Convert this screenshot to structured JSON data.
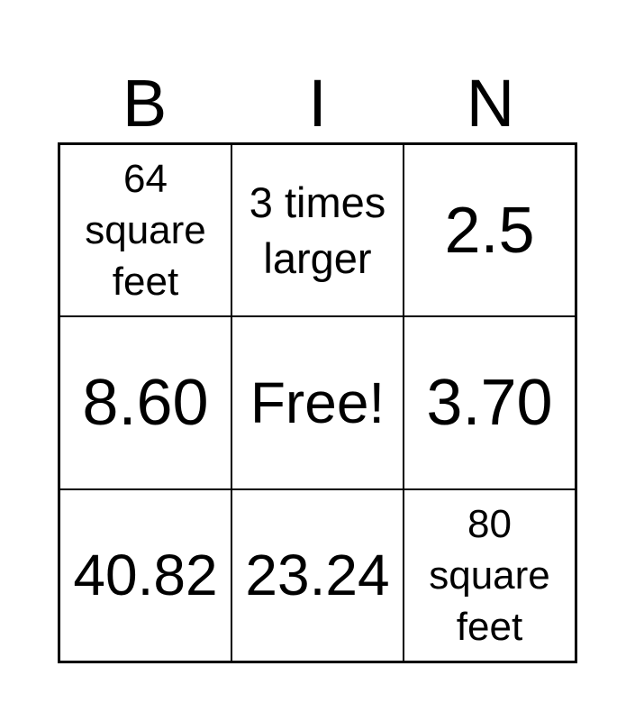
{
  "header": [
    "B",
    "I",
    "N"
  ],
  "cells": [
    "64 square feet",
    "3 times larger",
    "2.5",
    "8.60",
    "Free!",
    "3.70",
    "40.82",
    "23.24",
    "80 square feet"
  ]
}
